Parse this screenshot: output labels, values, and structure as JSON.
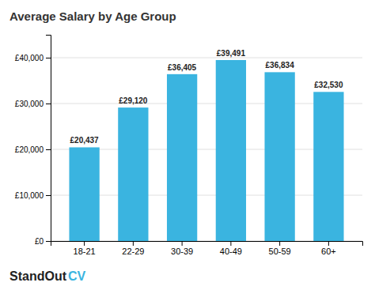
{
  "chart_data": {
    "type": "bar",
    "title": "Average Salary by Age Group",
    "categories": [
      "18-21",
      "22-29",
      "30-39",
      "40-49",
      "50-59",
      "60+"
    ],
    "values": [
      20437,
      29120,
      36405,
      39491,
      36834,
      32530
    ],
    "value_labels": [
      "£20,437",
      "£29,120",
      "£36,405",
      "£39,491",
      "£36,834",
      "£32,530"
    ],
    "data_labels": true,
    "color": "#3ab4e0",
    "ylim": [
      0,
      45000
    ],
    "yticks": [
      {
        "value": 0,
        "label": "£0"
      },
      {
        "value": 10000,
        "label": "£10,000"
      },
      {
        "value": 20000,
        "label": "£20,000"
      },
      {
        "value": 30000,
        "label": "£30,000"
      },
      {
        "value": 40000,
        "label": "£40,000"
      }
    ],
    "grid": true,
    "annotations": [
      "StandOut",
      "CV"
    ]
  }
}
